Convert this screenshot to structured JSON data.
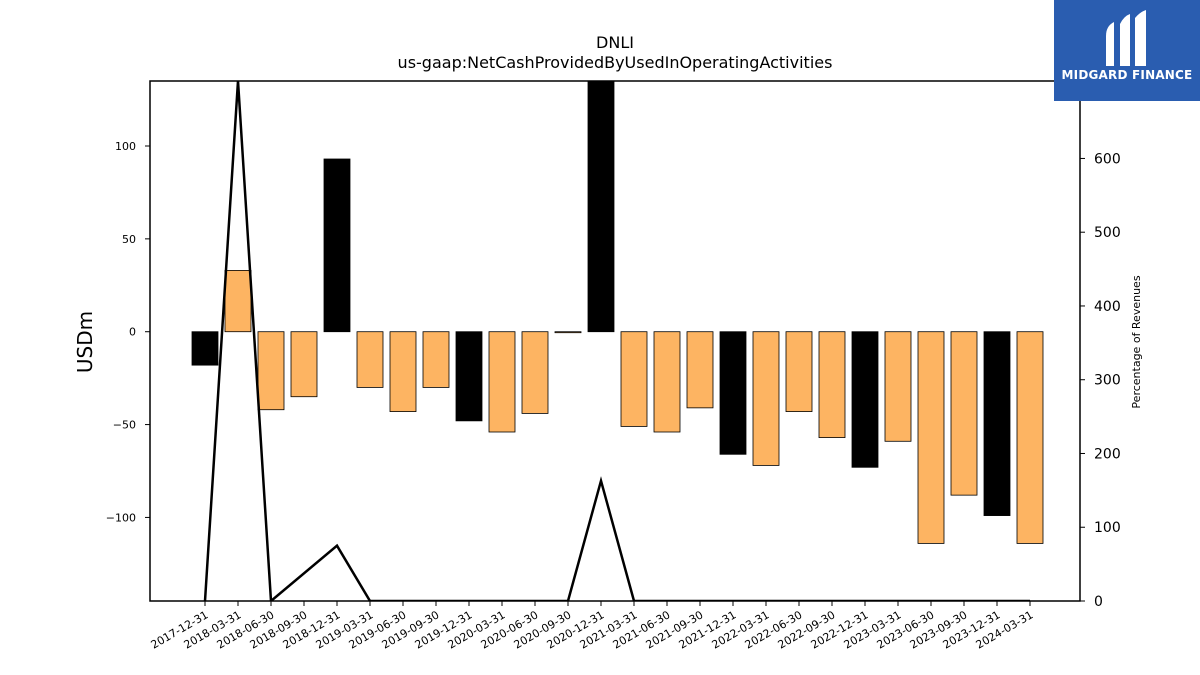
{
  "chart_data": {
    "type": "bar",
    "title": "DNLI",
    "subtitle": "us-gaap:NetCashProvidedByUsedInOperatingActivities",
    "ylabel": "USDm",
    "ylabel_right": "Percentage of Revenues",
    "ylim": [
      -145,
      135
    ],
    "ylim_right": [
      0,
      705
    ],
    "yticks": [
      -100,
      -50,
      0,
      50,
      100
    ],
    "yticks_right": [
      0,
      100,
      200,
      300,
      400,
      500,
      600
    ],
    "grid": false,
    "categories": [
      "2017-12-31",
      "2018-03-31",
      "2018-06-30",
      "2018-09-30",
      "2018-12-31",
      "2019-03-31",
      "2019-06-30",
      "2019-09-30",
      "2019-12-31",
      "2020-03-31",
      "2020-06-30",
      "2020-09-30",
      "2020-12-31",
      "2021-03-31",
      "2021-06-30",
      "2021-09-30",
      "2021-12-31",
      "2022-03-31",
      "2022-06-30",
      "2022-09-30",
      "2022-12-31",
      "2023-03-31",
      "2023-06-30",
      "2023-09-30",
      "2023-12-31",
      "2024-03-31"
    ],
    "values": [
      -18,
      33,
      -42,
      -35,
      93,
      -30,
      -43,
      -30,
      -48,
      -54,
      -44,
      0,
      135,
      -51,
      -54,
      -41,
      -66,
      -72,
      -43,
      -57,
      -73,
      -59,
      -114,
      -88,
      -99,
      -114
    ],
    "bar_colors": [
      "#000000",
      "#fdb462",
      "#fdb462",
      "#fdb462",
      "#000000",
      "#fdb462",
      "#fdb462",
      "#fdb462",
      "#000000",
      "#fdb462",
      "#fdb462",
      "#fdb462",
      "#000000",
      "#fdb462",
      "#fdb462",
      "#fdb462",
      "#000000",
      "#fdb462",
      "#fdb462",
      "#fdb462",
      "#000000",
      "#fdb462",
      "#fdb462",
      "#fdb462",
      "#000000",
      "#fdb462"
    ],
    "line_series": {
      "name": "",
      "axis": "right",
      "color": "#000000",
      "points": [
        {
          "x": "2017-12-31",
          "y": 0
        },
        {
          "x": "2018-03-31",
          "y": 705
        },
        {
          "x": "2018-06-30",
          "y": 0
        },
        {
          "x": "2018-12-31",
          "y": 75
        },
        {
          "x": "2019-03-31",
          "y": 0
        },
        {
          "x": "2020-09-30",
          "y": 0
        },
        {
          "x": "2020-12-31",
          "y": 163
        },
        {
          "x": "2021-03-31",
          "y": 0
        },
        {
          "x": "2024-03-31",
          "y": 0
        }
      ]
    }
  },
  "logo": {
    "text": "MIDGARD FINANCE",
    "bg_color": "#2a5db0"
  }
}
